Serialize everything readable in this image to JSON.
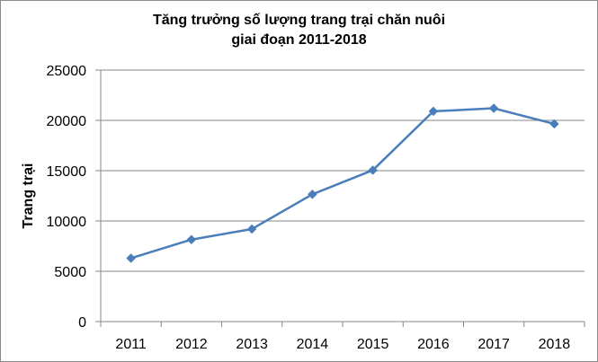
{
  "chart_data": {
    "type": "line",
    "title_lines": [
      "Tăng trưởng số lượng trang trại chăn nuôi",
      "giai đoạn 2011-2018"
    ],
    "ylabel": "Trang trại",
    "xlabel": "",
    "ylim": [
      0,
      25000
    ],
    "y_ticks": [
      "0",
      "5000",
      "10000",
      "15000",
      "20000",
      "25000"
    ],
    "categories": [
      "2011",
      "2012",
      "2013",
      "2014",
      "2015",
      "2016",
      "2017",
      "2018"
    ],
    "series": [
      {
        "values": [
          6300,
          8150,
          9200,
          12650,
          15050,
          20900,
          21200,
          19650
        ],
        "color": "#4a7ebb",
        "marker": "diamond"
      }
    ],
    "grid": "horizontal",
    "legend": "none"
  }
}
